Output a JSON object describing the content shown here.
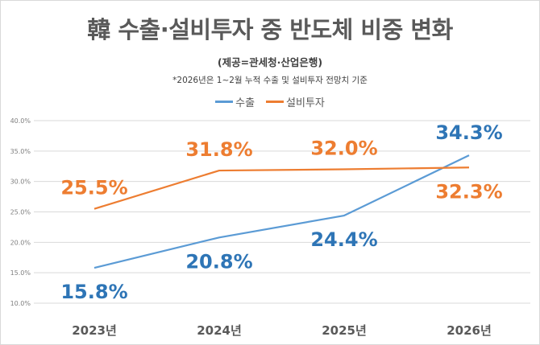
{
  "chart_data": {
    "type": "line",
    "title": "韓 수출·설비투자 중 반도체 비중 변화",
    "subtitle": "(제공=관세청·산업은행)",
    "note": "*2026년은 1~2월 누적 수출 및 설비투자 전망치 기준",
    "categories": [
      "2023년",
      "2024년",
      "2025년",
      "2026년"
    ],
    "series": [
      {
        "name": "수출",
        "values": [
          15.8,
          20.8,
          24.4,
          34.3
        ],
        "labels": [
          "15.8%",
          "20.8%",
          "24.4%",
          "34.3%"
        ],
        "color": "#5B9BD5",
        "label_color": "#2E75B6"
      },
      {
        "name": "설비투자",
        "values": [
          25.5,
          31.8,
          32.0,
          32.3
        ],
        "labels": [
          "25.5%",
          "31.8%",
          "32.0%",
          "32.3%"
        ],
        "color": "#ED7D31",
        "label_color": "#ED7D31"
      }
    ],
    "ylim": [
      10,
      40
    ],
    "yticks": [
      "10.0%",
      "15.0%",
      "20.0%",
      "25.0%",
      "30.0%",
      "35.0%",
      "40.0%"
    ],
    "ytick_values": [
      10,
      15,
      20,
      25,
      30,
      35,
      40
    ],
    "grid": true,
    "legend": "top-center",
    "xlabel": "",
    "ylabel": ""
  }
}
